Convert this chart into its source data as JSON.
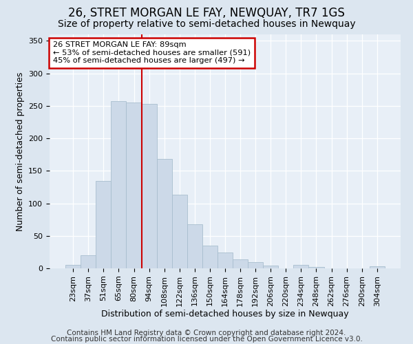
{
  "title": "26, STRET MORGAN LE FAY, NEWQUAY, TR7 1GS",
  "subtitle": "Size of property relative to semi-detached houses in Newquay",
  "xlabel": "Distribution of semi-detached houses by size in Newquay",
  "ylabel": "Number of semi-detached properties",
  "categories": [
    "23sqm",
    "37sqm",
    "51sqm",
    "65sqm",
    "80sqm",
    "94sqm",
    "108sqm",
    "122sqm",
    "136sqm",
    "150sqm",
    "164sqm",
    "178sqm",
    "192sqm",
    "206sqm",
    "220sqm",
    "234sqm",
    "248sqm",
    "262sqm",
    "276sqm",
    "290sqm",
    "304sqm"
  ],
  "values": [
    5,
    20,
    135,
    257,
    255,
    253,
    168,
    113,
    68,
    35,
    24,
    14,
    10,
    4,
    0,
    5,
    2,
    0,
    0,
    0,
    3
  ],
  "bar_color": "#ccd9e8",
  "bar_edge_color": "#a8bece",
  "marker_index": 5,
  "marker_color": "#cc0000",
  "annotation_text": "26 STRET MORGAN LE FAY: 89sqm\n← 53% of semi-detached houses are smaller (591)\n45% of semi-detached houses are larger (497) →",
  "annotation_box_color": "#ffffff",
  "annotation_box_edge_color": "#cc0000",
  "footer_line1": "Contains HM Land Registry data © Crown copyright and database right 2024.",
  "footer_line2": "Contains public sector information licensed under the Open Government Licence v3.0.",
  "ylim": [
    0,
    360
  ],
  "yticks": [
    0,
    50,
    100,
    150,
    200,
    250,
    300,
    350
  ],
  "bg_color": "#dce6f0",
  "plot_bg_color": "#e8eff7",
  "title_fontsize": 12,
  "subtitle_fontsize": 10,
  "label_fontsize": 9,
  "tick_fontsize": 8,
  "footer_fontsize": 7.5
}
